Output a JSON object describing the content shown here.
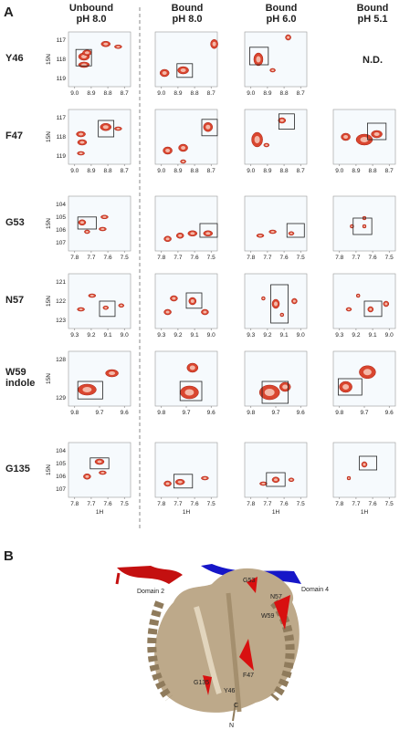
{
  "figure": {
    "panel_a_label": "A",
    "panel_b_label": "B",
    "columns": [
      [
        "Unbound",
        "pH 8.0"
      ],
      [
        "Bound",
        "pH 8.0"
      ],
      [
        "Bound",
        "pH 6.0"
      ],
      [
        "Bound",
        "pH 5.1"
      ]
    ],
    "rows": [
      {
        "label": [
          "Y46"
        ],
        "y_axis_label": "15N",
        "yticks": [
          "117",
          "118",
          "119"
        ],
        "xticks": [
          "9.0",
          "8.9",
          "8.8",
          "8.7"
        ],
        "not_determined": "N.D."
      },
      {
        "label": [
          "F47"
        ],
        "y_axis_label": "15N",
        "yticks": [
          "117",
          "118",
          "119"
        ],
        "xticks": [
          "9.0",
          "8.9",
          "8.8",
          "8.7"
        ]
      },
      {
        "label": [
          "G53"
        ],
        "y_axis_label": "15N",
        "yticks": [
          "104",
          "105",
          "106",
          "107"
        ],
        "xticks": [
          "7.8",
          "7.7",
          "7.6",
          "7.5"
        ]
      },
      {
        "label": [
          "N57"
        ],
        "y_axis_label": "15N",
        "yticks": [
          "121",
          "122",
          "123"
        ],
        "xticks": [
          "9.3",
          "9.2",
          "9.1",
          "9.0"
        ]
      },
      {
        "label": [
          "W59",
          "indole"
        ],
        "y_axis_label": "15N",
        "yticks": [
          "128",
          "129"
        ],
        "xticks": [
          "9.8",
          "9.7",
          "9.6"
        ]
      },
      {
        "label": [
          "G135"
        ],
        "y_axis_label": "15N",
        "yticks": [
          "104",
          "105",
          "106",
          "107"
        ],
        "xticks": [
          "7.8",
          "7.7",
          "7.6",
          "7.5"
        ],
        "x_axis_label": "1H"
      }
    ],
    "structure_labels": {
      "domain2": "Domain 2",
      "domain4": "Domain 4",
      "g53": "G53",
      "n57": "N57",
      "w59": "W59",
      "f47": "F47",
      "g135": "G135",
      "y46": "Y46",
      "c": "C",
      "n": "N"
    }
  }
}
